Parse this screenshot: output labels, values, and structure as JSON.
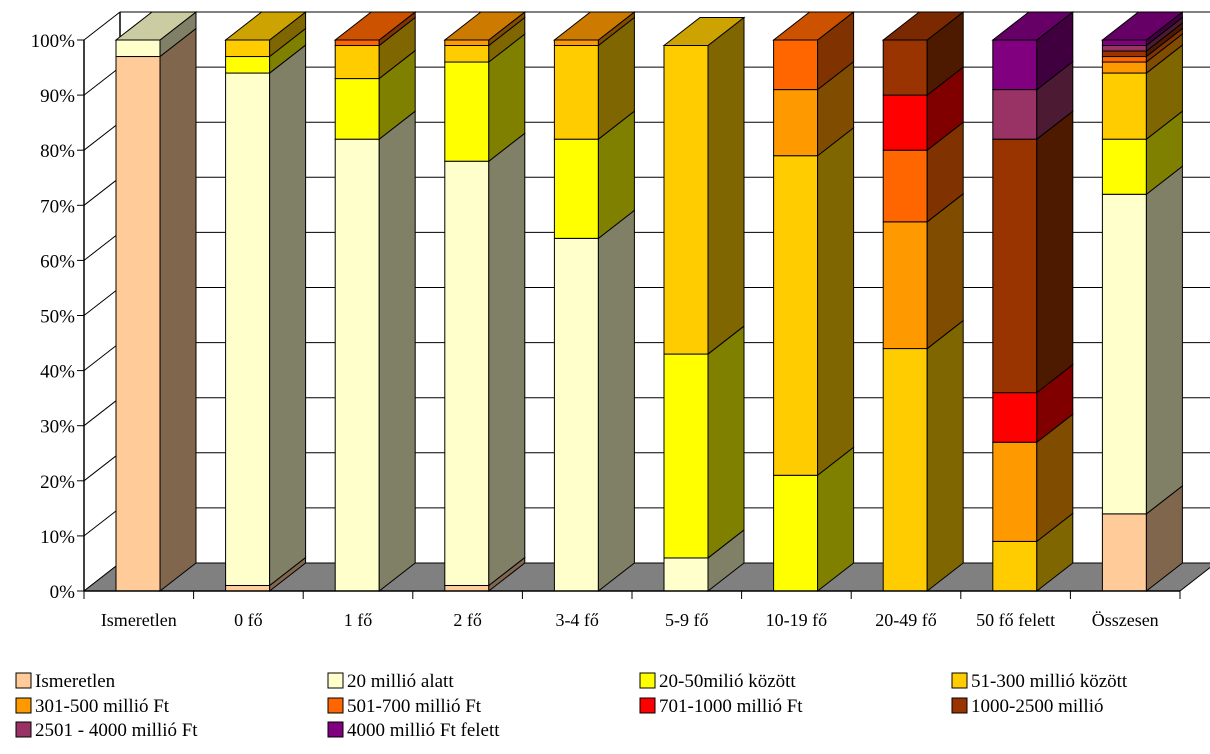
{
  "chart_data": {
    "type": "bar",
    "stacked": true,
    "percent": true,
    "three_d": true,
    "title": "",
    "xlabel": "",
    "ylabel": "",
    "ylim": [
      0,
      100
    ],
    "yticks": [
      "0%",
      "10%",
      "20%",
      "30%",
      "40%",
      "50%",
      "60%",
      "70%",
      "80%",
      "90%",
      "100%"
    ],
    "grid": true,
    "legend_position": "bottom",
    "categories": [
      "Ismeretlen",
      "0 fő",
      "1 fő",
      "2 fő",
      "3-4 fő",
      "5-9 fő",
      "10-19 fő",
      "20-49 fő",
      "50 fő felett",
      "Összesen"
    ],
    "series": [
      {
        "name": "Ismeretlen",
        "color": "#FFCC99",
        "values": [
          97,
          1,
          0,
          1,
          0,
          0,
          0,
          0,
          0,
          14
        ]
      },
      {
        "name": "20 millió alatt",
        "color": "#FFFFCC",
        "values": [
          3,
          93,
          82,
          77,
          64,
          6,
          0,
          0,
          0,
          58
        ]
      },
      {
        "name": "20-50milió között",
        "color": "#FFFF00",
        "values": [
          0,
          3,
          11,
          18,
          18,
          37,
          21,
          0,
          0,
          10
        ]
      },
      {
        "name": "51-300 millió között",
        "color": "#FFCC00",
        "values": [
          0,
          3,
          6,
          3,
          17,
          56,
          58,
          44,
          9,
          12
        ]
      },
      {
        "name": "301-500 millió Ft",
        "color": "#FF9900",
        "values": [
          0,
          0,
          0,
          1,
          1,
          0,
          12,
          23,
          18,
          2
        ]
      },
      {
        "name": "501-700 millió Ft",
        "color": "#FF6600",
        "values": [
          0,
          0,
          1,
          0,
          0,
          0,
          9,
          13,
          0,
          1
        ]
      },
      {
        "name": "701-1000 millió Ft",
        "color": "#FF0000",
        "values": [
          0,
          0,
          0,
          0,
          0,
          0,
          0,
          10,
          9,
          0
        ]
      },
      {
        "name": "1000-2500 millió",
        "color": "#993300",
        "values": [
          0,
          0,
          0,
          0,
          0,
          0,
          0,
          10,
          46,
          1
        ]
      },
      {
        "name": "2501 - 4000  millió Ft",
        "color": "#993366",
        "values": [
          0,
          0,
          0,
          0,
          0,
          0,
          0,
          0,
          9,
          1
        ]
      },
      {
        "name": "4000 millió Ft felett",
        "color": "#800080",
        "values": [
          0,
          0,
          0,
          0,
          0,
          0,
          0,
          0,
          9,
          1
        ]
      }
    ],
    "colors": {
      "floor": "#808080",
      "gridline": "#000000",
      "axis": "#000000",
      "side_darkening": "dark"
    }
  }
}
